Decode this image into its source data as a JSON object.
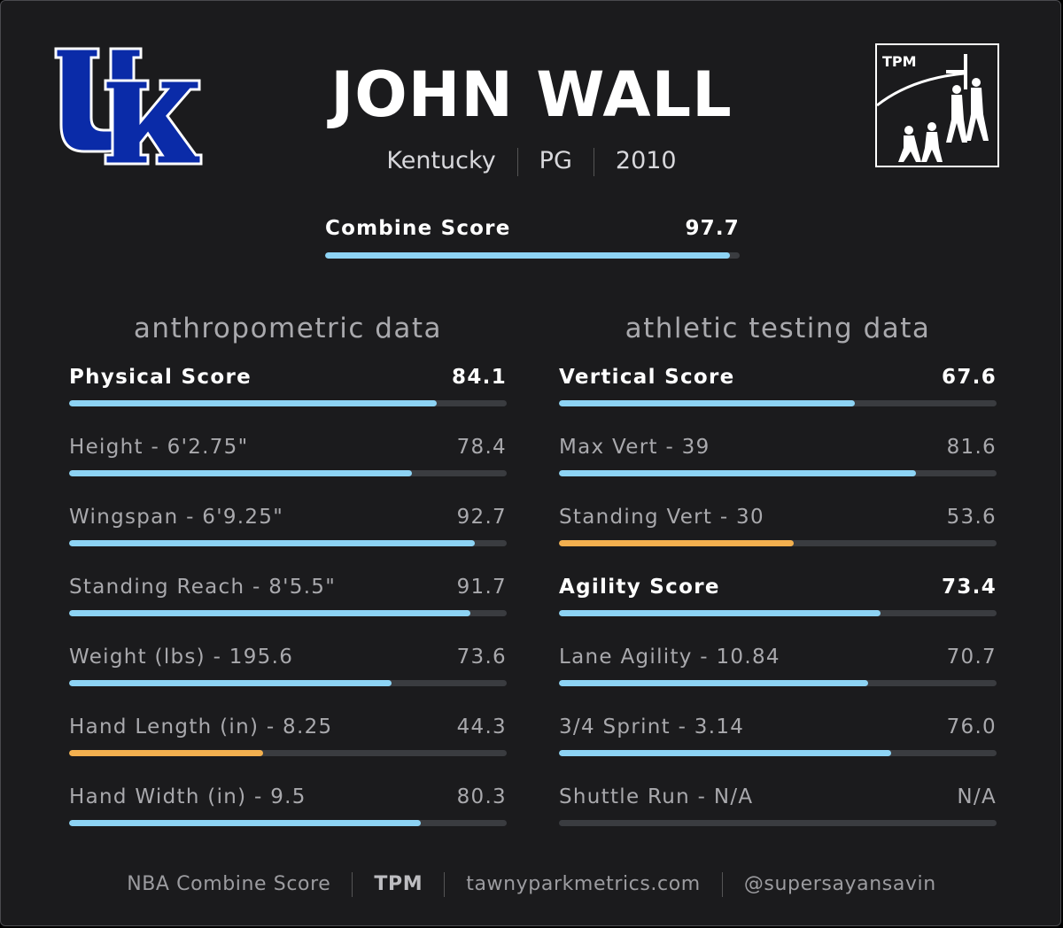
{
  "player": {
    "name": "JOHN WALL",
    "school": "Kentucky",
    "position": "PG",
    "year": "2010"
  },
  "logos": {
    "school_logo": "UK",
    "brand_logo": "TPM"
  },
  "combine": {
    "label": "Combine Score",
    "value": "97.7",
    "fraction": 0.977
  },
  "left_column": {
    "title": "anthropometric data",
    "metrics": [
      {
        "label": "Physical Score",
        "value": "84.1",
        "fraction": 0.841,
        "bold": true,
        "low": false
      },
      {
        "label": "Height - 6'2.75\"",
        "value": "78.4",
        "fraction": 0.784,
        "bold": false,
        "low": false
      },
      {
        "label": "Wingspan - 6'9.25\"",
        "value": "92.7",
        "fraction": 0.927,
        "bold": false,
        "low": false
      },
      {
        "label": "Standing Reach - 8'5.5\"",
        "value": "91.7",
        "fraction": 0.917,
        "bold": false,
        "low": false
      },
      {
        "label": "Weight (lbs) - 195.6",
        "value": "73.6",
        "fraction": 0.736,
        "bold": false,
        "low": false
      },
      {
        "label": "Hand Length (in) - 8.25",
        "value": "44.3",
        "fraction": 0.443,
        "bold": false,
        "low": true
      },
      {
        "label": "Hand Width (in) - 9.5",
        "value": "80.3",
        "fraction": 0.803,
        "bold": false,
        "low": false
      }
    ]
  },
  "right_column": {
    "title": "athletic testing data",
    "metrics": [
      {
        "label": "Vertical Score",
        "value": "67.6",
        "fraction": 0.676,
        "bold": true,
        "low": false
      },
      {
        "label": "Max Vert - 39",
        "value": "81.6",
        "fraction": 0.816,
        "bold": false,
        "low": false
      },
      {
        "label": "Standing Vert - 30",
        "value": "53.6",
        "fraction": 0.536,
        "bold": false,
        "low": true
      },
      {
        "label": "Agility Score",
        "value": "73.4",
        "fraction": 0.734,
        "bold": true,
        "low": false
      },
      {
        "label": "Lane Agility - 10.84",
        "value": "70.7",
        "fraction": 0.707,
        "bold": false,
        "low": false
      },
      {
        "label": "3/4 Sprint - 3.14",
        "value": "76.0",
        "fraction": 0.76,
        "bold": false,
        "low": false
      },
      {
        "label": "Shuttle Run - N/A",
        "value": "N/A",
        "fraction": 0,
        "bold": false,
        "low": false
      }
    ]
  },
  "footer": {
    "item1": "NBA Combine Score",
    "item2": "TPM",
    "item3": "tawnyparkmetrics.com",
    "item4": "@supersayansavin"
  },
  "colors": {
    "bar_high": "#8dd3f4",
    "bar_low": "#f3b04f",
    "track": "#3a3c40",
    "background": "#1b1b1d"
  }
}
